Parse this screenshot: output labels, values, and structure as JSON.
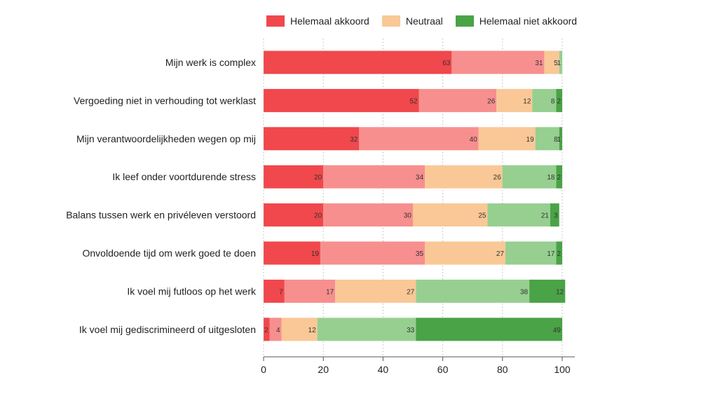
{
  "chart_data": {
    "type": "bar",
    "orientation": "horizontal",
    "stacked": true,
    "categories": [
      "Mijn werk is complex",
      "Vergoeding niet in verhouding tot werklast",
      "Mijn verantwoordelijkheden wegen op mij",
      "Ik leef onder voortdurende stress",
      "Balans tussen werk en privéleven verstoord",
      "Onvoldoende tijd om werk goed te doen",
      "Ik voel mij futloos op het werk",
      "Ik voel mij gediscrimineerd of uitgesloten"
    ],
    "series": [
      {
        "name": "Helemaal akkoord",
        "color": "#f0484c",
        "values": [
          63,
          52,
          32,
          20,
          20,
          19,
          7,
          2
        ]
      },
      {
        "color": "#f78f8f",
        "values": [
          31,
          26,
          40,
          34,
          30,
          35,
          17,
          4
        ]
      },
      {
        "name": "Neutraal",
        "color": "#f9c896",
        "values": [
          5,
          12,
          19,
          26,
          25,
          27,
          27,
          12
        ]
      },
      {
        "color": "#96cf90",
        "values": [
          1,
          8,
          8,
          18,
          21,
          17,
          38,
          33
        ]
      },
      {
        "name": "Helemaal niet akkoord",
        "color": "#4aa346",
        "values": [
          0,
          2,
          1,
          2,
          3,
          2,
          12,
          49
        ]
      }
    ],
    "xlim": [
      0,
      100
    ],
    "xticks": [
      0,
      20,
      40,
      60,
      80,
      100
    ],
    "grid": true,
    "legend_position": "top"
  }
}
